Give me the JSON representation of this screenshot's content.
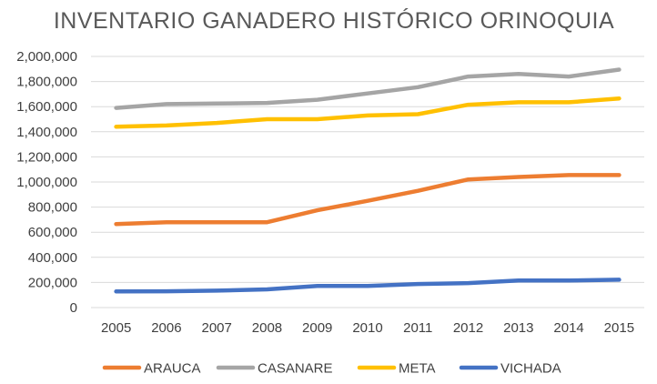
{
  "chart_data": {
    "type": "line",
    "title": "INVENTARIO GANADERO HISTÓRICO ORINOQUIA",
    "xlabel": "",
    "ylabel": "",
    "categories": [
      "2005",
      "2006",
      "2007",
      "2008",
      "2009",
      "2010",
      "2011",
      "2012",
      "2013",
      "2014",
      "2015"
    ],
    "ylim": [
      0,
      2000000
    ],
    "yticks": [
      0,
      200000,
      400000,
      600000,
      800000,
      1000000,
      1200000,
      1400000,
      1600000,
      1800000,
      2000000
    ],
    "ytick_labels": [
      "0",
      "200,000",
      "400,000",
      "600,000",
      "800,000",
      "1,000,000",
      "1,200,000",
      "1,400,000",
      "1,600,000",
      "1,800,000",
      "2,000,000"
    ],
    "grid": true,
    "legend_position": "bottom",
    "series": [
      {
        "name": "ARAUCA",
        "color": "#ed7d31",
        "values": [
          665000,
          680000,
          680000,
          680000,
          775000,
          850000,
          930000,
          1020000,
          1040000,
          1055000,
          1055000
        ]
      },
      {
        "name": "CASANARE",
        "color": "#a5a5a5",
        "values": [
          1590000,
          1620000,
          1625000,
          1630000,
          1655000,
          1705000,
          1755000,
          1840000,
          1860000,
          1840000,
          1895000
        ]
      },
      {
        "name": "META",
        "color": "#ffc000",
        "values": [
          1440000,
          1450000,
          1470000,
          1500000,
          1500000,
          1530000,
          1540000,
          1615000,
          1635000,
          1635000,
          1665000
        ]
      },
      {
        "name": "VICHADA",
        "color": "#4472c4",
        "values": [
          128000,
          130000,
          135000,
          145000,
          172000,
          172000,
          188000,
          195000,
          215000,
          215000,
          222000
        ]
      }
    ]
  }
}
